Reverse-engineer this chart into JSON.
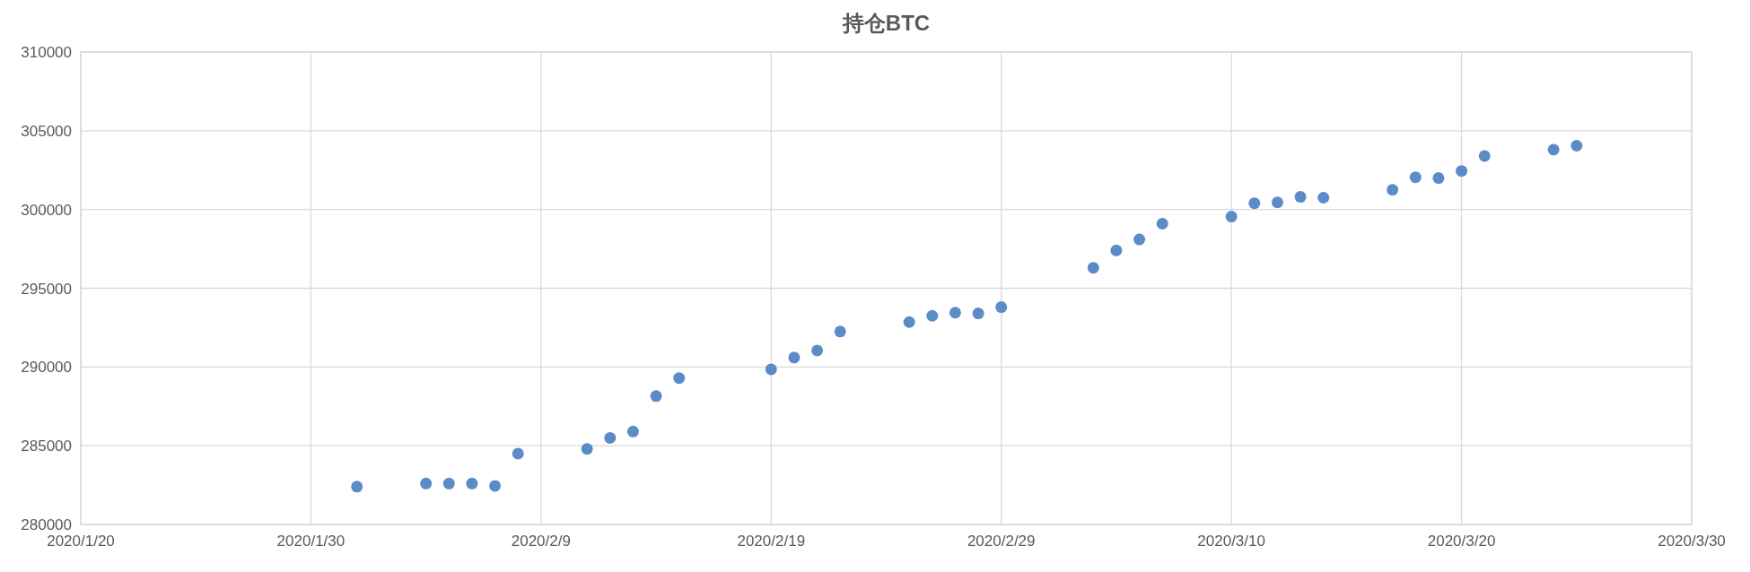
{
  "chart_data": {
    "type": "scatter",
    "title": "持仓BTC",
    "marker": "circle",
    "grid": true,
    "x": [
      "2020-02-01",
      "2020-02-04",
      "2020-02-05",
      "2020-02-06",
      "2020-02-07",
      "2020-02-08",
      "2020-02-11",
      "2020-02-12",
      "2020-02-13",
      "2020-02-14",
      "2020-02-15",
      "2020-02-19",
      "2020-02-20",
      "2020-02-21",
      "2020-02-22",
      "2020-02-25",
      "2020-02-26",
      "2020-02-27",
      "2020-02-28",
      "2020-02-29",
      "2020-03-04",
      "2020-03-05",
      "2020-03-06",
      "2020-03-07",
      "2020-03-10",
      "2020-03-11",
      "2020-03-12",
      "2020-03-13",
      "2020-03-14",
      "2020-03-17",
      "2020-03-18",
      "2020-03-19",
      "2020-03-20",
      "2020-03-21",
      "2020-03-24",
      "2020-03-25"
    ],
    "series": [
      {
        "color": "#5b8cc8",
        "values": [
          282400,
          282600,
          282600,
          282600,
          282450,
          284500,
          284800,
          285500,
          285900,
          288150,
          289300,
          289850,
          290600,
          291050,
          292250,
          292850,
          293250,
          293450,
          293400,
          293800,
          296300,
          297400,
          298100,
          299100,
          299550,
          300400,
          300450,
          300800,
          300750,
          301250,
          302050,
          302000,
          302450,
          303400,
          303800,
          304050
        ]
      }
    ],
    "xlim": [
      "2020-01-20",
      "2020-03-30"
    ],
    "xticks": [
      {
        "value": "2020-01-20",
        "label": "2020/1/20"
      },
      {
        "value": "2020-01-30",
        "label": "2020/1/30"
      },
      {
        "value": "2020-02-09",
        "label": "2020/2/9"
      },
      {
        "value": "2020-02-19",
        "label": "2020/2/19"
      },
      {
        "value": "2020-02-29",
        "label": "2020/2/29"
      },
      {
        "value": "2020-03-10",
        "label": "2020/3/10"
      },
      {
        "value": "2020-03-20",
        "label": "2020/3/20"
      },
      {
        "value": "2020-03-30",
        "label": "2020/3/30"
      }
    ],
    "ylim": [
      280000,
      310000
    ],
    "yticks": [
      280000,
      285000,
      290000,
      295000,
      300000,
      305000,
      310000
    ]
  }
}
